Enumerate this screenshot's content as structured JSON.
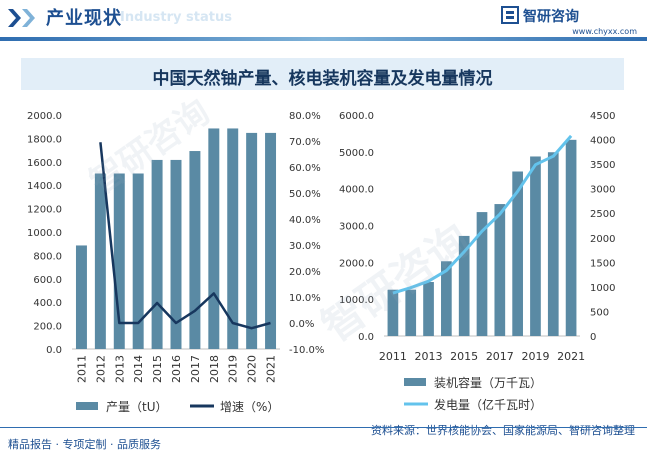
{
  "header": {
    "title": "产业现状",
    "ghost_text": "Industry status",
    "brand_name": "智研咨询",
    "brand_url": "www.chyxx.com"
  },
  "chart_title": "中国天然铀产量、核电装机容量及发电量情况",
  "watermark_text": "智研咨询",
  "chart_data": [
    {
      "type": "bar+line",
      "categories": [
        "2011",
        "2012",
        "2013",
        "2014",
        "2015",
        "2016",
        "2017",
        "2018",
        "2019",
        "2020",
        "2021"
      ],
      "series": [
        {
          "name": "产量（tU）",
          "type": "bar",
          "axis": "left",
          "values": [
            885,
            1500,
            1500,
            1500,
            1616,
            1616,
            1692,
            1885,
            1885,
            1847,
            1847
          ]
        },
        {
          "name": "增速（%）",
          "type": "line",
          "axis": "right",
          "values": [
            null,
            69.5,
            0.0,
            0.0,
            7.7,
            0.0,
            4.7,
            11.4,
            0.0,
            -2.0,
            0.0
          ]
        }
      ],
      "left_axis": {
        "ticks": [
          "0.0",
          "200.0",
          "400.0",
          "600.0",
          "800.0",
          "1000.0",
          "1200.0",
          "1400.0",
          "1600.0",
          "1800.0",
          "2000.0"
        ],
        "ylim": [
          0,
          2000
        ]
      },
      "right_axis": {
        "ticks": [
          "-10.0%",
          "0.0%",
          "10.0%",
          "20.0%",
          "30.0%",
          "40.0%",
          "50.0%",
          "60.0%",
          "70.0%",
          "80.0%"
        ],
        "ylim": [
          -10,
          80
        ]
      },
      "colors": {
        "bar": "#5a8aa4",
        "line": "#17375e"
      },
      "legend_position": "bottom"
    },
    {
      "type": "bar+line",
      "categories": [
        "2011",
        "2012",
        "2013",
        "2014",
        "2015",
        "2016",
        "2017",
        "2018",
        "2019",
        "2020",
        "2021"
      ],
      "tick_labels": [
        "2011",
        "2013",
        "2015",
        "2017",
        "2019",
        "2021"
      ],
      "series": [
        {
          "name": "装机容量（万千瓦）",
          "type": "bar",
          "axis": "left",
          "values": [
            1257,
            1257,
            1466,
            2029,
            2717,
            3364,
            3582,
            4466,
            4874,
            4989,
            5326
          ]
        },
        {
          "name": "发电量（亿千瓦时）",
          "type": "line",
          "axis": "right",
          "values": [
            874,
            983,
            1115,
            1332,
            1714,
            2133,
            2481,
            2944,
            3487,
            3662,
            4075
          ]
        }
      ],
      "left_axis": {
        "ticks": [
          "0.0",
          "1000.0",
          "2000.0",
          "3000.0",
          "4000.0",
          "5000.0",
          "6000.0"
        ],
        "ylim": [
          0,
          6000
        ]
      },
      "right_axis": {
        "ticks": [
          "0",
          "500",
          "1000",
          "1500",
          "2000",
          "2500",
          "3000",
          "3500",
          "4000",
          "4500"
        ],
        "ylim": [
          0,
          4500
        ]
      },
      "colors": {
        "bar": "#5a8aa4",
        "line": "#63c3ec"
      },
      "legend_position": "bottom"
    }
  ],
  "source": "资料来源：世界核能协会、国家能源局、智研咨询整理",
  "footer": "精品报告 · 专项定制 · 品质服务"
}
